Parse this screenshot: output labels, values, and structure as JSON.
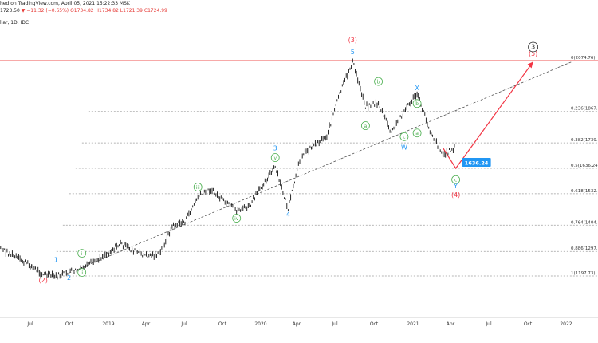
{
  "header": {
    "line1": "hed on TradingView.com, April 05, 2021 15:22:33 MSK",
    "line2_price": "1723.50",
    "line2_change": "▼ −11.32 (−0.65%)",
    "line2_o": "1734.82",
    "line2_h": "1734.82",
    "line2_l": "1721.39",
    "line2_c": "1724.99",
    "line3": "llar, 1D, IDC"
  },
  "chart_data": {
    "type": "line",
    "title": "",
    "x_ticks": [
      "Jul",
      "Oct",
      "2019",
      "Apr",
      "Jul",
      "Oct",
      "2020",
      "Apr",
      "Jul",
      "Oct",
      "2021",
      "Apr",
      "Jul",
      "Oct",
      "2022"
    ],
    "price_path": [
      {
        "x": "2018-04",
        "y": 1345
      },
      {
        "x": "2018-05",
        "y": 1300
      },
      {
        "x": "2018-06",
        "y": 1270
      },
      {
        "x": "2018-07",
        "y": 1240
      },
      {
        "x": "2018-08",
        "y": 1205
      },
      {
        "x": "2018-09",
        "y": 1195
      },
      {
        "x": "2018-10",
        "y": 1215
      },
      {
        "x": "2018-11",
        "y": 1222
      },
      {
        "x": "2018-12",
        "y": 1260
      },
      {
        "x": "2019-01",
        "y": 1290
      },
      {
        "x": "2019-02",
        "y": 1330
      },
      {
        "x": "2019-03",
        "y": 1300
      },
      {
        "x": "2019-04",
        "y": 1280
      },
      {
        "x": "2019-05",
        "y": 1285
      },
      {
        "x": "2019-06",
        "y": 1400
      },
      {
        "x": "2019-07",
        "y": 1420
      },
      {
        "x": "2019-08",
        "y": 1520
      },
      {
        "x": "2019-09",
        "y": 1550
      },
      {
        "x": "2019-10",
        "y": 1500
      },
      {
        "x": "2019-11",
        "y": 1465
      },
      {
        "x": "2019-12",
        "y": 1480
      },
      {
        "x": "2020-01",
        "y": 1570
      },
      {
        "x": "2020-02",
        "y": 1640
      },
      {
        "x": "2020-03",
        "y": 1470
      },
      {
        "x": "2020-04",
        "y": 1690
      },
      {
        "x": "2020-05",
        "y": 1730
      },
      {
        "x": "2020-06",
        "y": 1770
      },
      {
        "x": "2020-07",
        "y": 1940
      },
      {
        "x": "2020-08",
        "y": 2070
      },
      {
        "x": "2020-09",
        "y": 1890
      },
      {
        "x": "2020-10",
        "y": 1900
      },
      {
        "x": "2020-11",
        "y": 1780
      },
      {
        "x": "2020-12",
        "y": 1870
      },
      {
        "x": "2021-01",
        "y": 1940
      },
      {
        "x": "2021-02",
        "y": 1790
      },
      {
        "x": "2021-03",
        "y": 1690
      },
      {
        "x": "2021-04",
        "y": 1724
      }
    ],
    "fib_levels": [
      {
        "label": "0(2074.76)",
        "value": 2074.76
      },
      {
        "label": "0.236(1867.7",
        "value": 1867.7
      },
      {
        "label": "0.382(1739.7",
        "value": 1739.7
      },
      {
        "label": "0.5(1636.24)",
        "value": 1636.24
      },
      {
        "label": "0.618(1532.7",
        "value": 1532.7
      },
      {
        "label": "0.764(1404.7",
        "value": 1404.7
      },
      {
        "label": "0.886(1297.7",
        "value": 1297.7
      },
      {
        "label": "1(1197.73)",
        "value": 1197.73
      }
    ],
    "price_tag": {
      "value": 1636.24,
      "label": "1636.24"
    },
    "wave_labels": [
      {
        "text": "1",
        "x": "2018-09",
        "y": 1255,
        "style": "blue"
      },
      {
        "text": "(2)",
        "x": "2018-08",
        "y": 1172,
        "style": "red"
      },
      {
        "text": "2",
        "x": "2018-10",
        "y": 1182,
        "style": "blue"
      },
      {
        "text": "i",
        "x": "2018-11",
        "y": 1290,
        "style": "circle"
      },
      {
        "text": "ii",
        "x": "2018-11",
        "y": 1212,
        "style": "circle"
      },
      {
        "text": "iii",
        "x": "2019-08",
        "y": 1560,
        "style": "circle"
      },
      {
        "text": "iv",
        "x": "2019-11",
        "y": 1433,
        "style": "circle"
      },
      {
        "text": "3",
        "x": "2020-02",
        "y": 1710,
        "style": "blue"
      },
      {
        "text": "v",
        "x": "2020-02",
        "y": 1680,
        "style": "circle"
      },
      {
        "text": "4",
        "x": "2020-03",
        "y": 1440,
        "style": "blue"
      },
      {
        "text": "(3)",
        "x": "2020-08",
        "y": 2150,
        "style": "red"
      },
      {
        "text": "5",
        "x": "2020-08",
        "y": 2100,
        "style": "blue"
      },
      {
        "text": "a",
        "x": "2020-09",
        "y": 1810,
        "style": "circle"
      },
      {
        "text": "b",
        "x": "2020-10",
        "y": 1990,
        "style": "circle"
      },
      {
        "text": "c",
        "x": "2020-12",
        "y": 1765,
        "style": "circle"
      },
      {
        "text": "W",
        "x": "2020-12",
        "y": 1712,
        "style": "blue"
      },
      {
        "text": "X",
        "x": "2021-01",
        "y": 1955,
        "style": "blue"
      },
      {
        "text": "b",
        "x": "2021-01",
        "y": 1900,
        "style": "circle"
      },
      {
        "text": "a",
        "x": "2021-01",
        "y": 1780,
        "style": "circle"
      },
      {
        "text": "c",
        "x": "2021-04",
        "y": 1590,
        "style": "circle"
      },
      {
        "text": "Y",
        "x": "2021-04",
        "y": 1555,
        "style": "blue"
      },
      {
        "text": "(4)",
        "x": "2021-04",
        "y": 1520,
        "style": "red"
      },
      {
        "text": "(5)",
        "x": "2021-10",
        "y": 2095,
        "style": "red"
      },
      {
        "text": "3",
        "x": "2021-10",
        "y": 2130,
        "style": "circle-black"
      }
    ],
    "trendline": [
      {
        "x": "2018-10",
        "y": 1210
      },
      {
        "x": "2022-01",
        "y": 2070
      }
    ],
    "projection": [
      {
        "x": "2021-03",
        "y": 1720
      },
      {
        "x": "2021-04",
        "y": 1636.24
      },
      {
        "x": "2021-10",
        "y": 2070
      }
    ],
    "colors": {
      "candle": "#111111",
      "fib": "#9e9e9e",
      "top_line": "#ef5350",
      "projection": "#f23645",
      "wave_blue": "#2196f3",
      "wave_circle": "#4caf50",
      "wave_red": "#f23645",
      "tag": "#2196f3"
    }
  }
}
